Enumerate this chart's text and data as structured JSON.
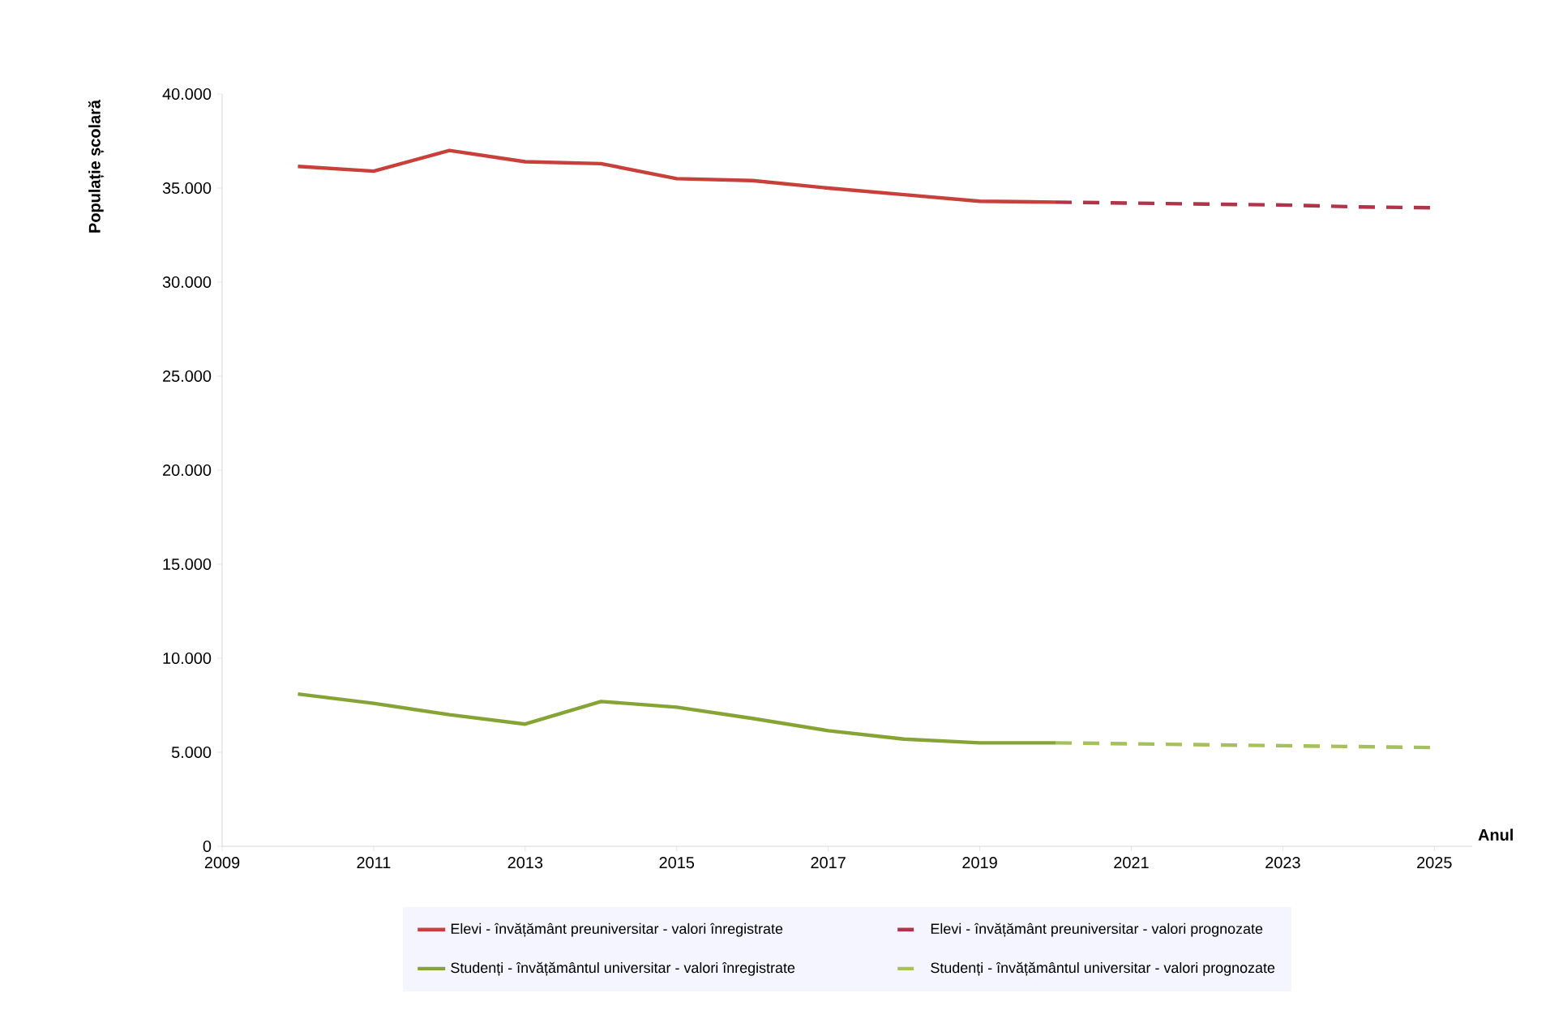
{
  "chart_data": {
    "type": "line",
    "xlabel": "Anul",
    "ylabel": "Populație școlară",
    "xlim": [
      2009,
      2025.5
    ],
    "xticks": [
      2009,
      2011,
      2013,
      2015,
      2017,
      2019,
      2021,
      2023,
      2025
    ],
    "ylim": [
      0,
      40000
    ],
    "yticks": [
      {
        "value": 0,
        "label": "0"
      },
      {
        "value": 5000,
        "label": "5.000"
      },
      {
        "value": 10000,
        "label": "10.000"
      },
      {
        "value": 15000,
        "label": "15.000"
      },
      {
        "value": 20000,
        "label": "20.000"
      },
      {
        "value": 25000,
        "label": "25.000"
      },
      {
        "value": 30000,
        "label": "30.000"
      },
      {
        "value": 35000,
        "label": "35.000"
      },
      {
        "value": 40000,
        "label": "40.000"
      }
    ],
    "grid": false,
    "legend": "bottom",
    "series": [
      {
        "name": "Elevi - învățământ preuniversitar - valori înregistrate",
        "color": "#c8403a",
        "line_style": "solid",
        "x": [
          2010,
          2011,
          2012,
          2013,
          2014,
          2015,
          2016,
          2017,
          2018,
          2019,
          2020
        ],
        "values": [
          36150,
          35900,
          37000,
          36400,
          36300,
          35500,
          35400,
          35000,
          34650,
          34300,
          34250
        ]
      },
      {
        "name": "Elevi - învățământ preuniversitar - valori prognozate",
        "color": "#b0344a",
        "line_style": "dashed",
        "x": [
          2020,
          2021,
          2022,
          2023,
          2024,
          2025
        ],
        "values": [
          34250,
          34200,
          34150,
          34100,
          34000,
          33950
        ]
      },
      {
        "name": "Studenți - învățământul universitar - valori înregistrate",
        "color": "#86a436",
        "line_style": "solid",
        "x": [
          2010,
          2011,
          2012,
          2013,
          2014,
          2015,
          2016,
          2017,
          2018,
          2019,
          2020
        ],
        "values": [
          8100,
          7600,
          7000,
          6500,
          7700,
          7400,
          6800,
          6150,
          5700,
          5500,
          5500
        ]
      },
      {
        "name": "Studenți - învățământul universitar - valori prognozate",
        "color": "#a6c05e",
        "line_style": "dashed",
        "x": [
          2020,
          2021,
          2022,
          2023,
          2024,
          2025
        ],
        "values": [
          5500,
          5450,
          5400,
          5350,
          5300,
          5250
        ]
      }
    ]
  }
}
